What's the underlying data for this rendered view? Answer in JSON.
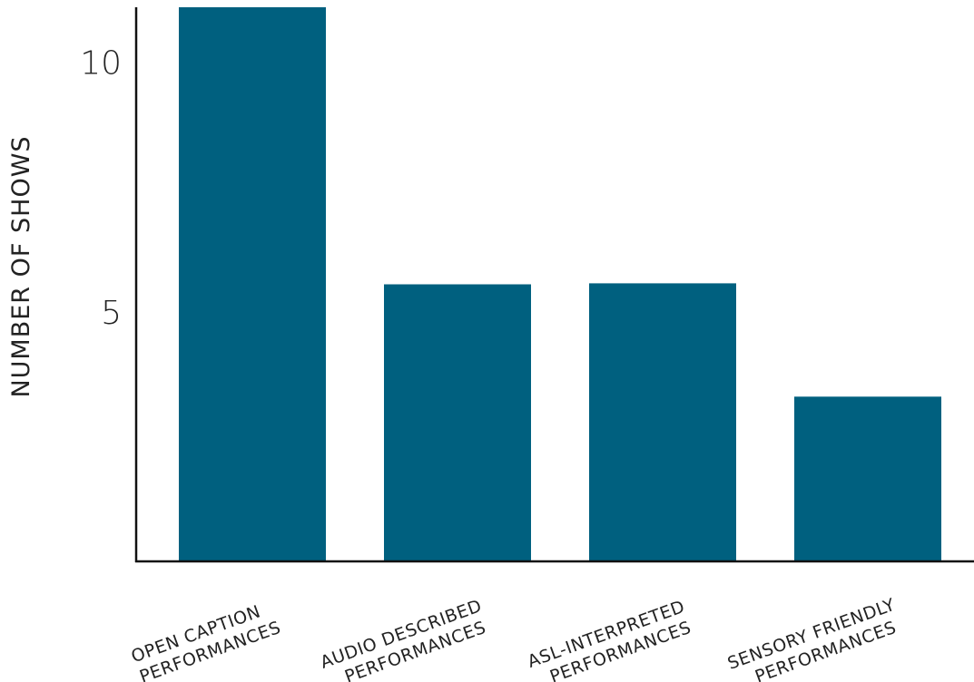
{
  "chart_data": {
    "type": "bar",
    "title": "",
    "xlabel": "",
    "ylabel": "NUMBER OF SHOWS",
    "ylim": [
      0,
      11.1
    ],
    "yticks": [
      5,
      10
    ],
    "grid": false,
    "bar_color": "#00607F",
    "categories": [
      [
        "OPEN CAPTION",
        "PERFORMANCES"
      ],
      [
        "AUDIO DESCRIBED",
        "PERFORMANCES"
      ],
      [
        "ASL-INTERPRETED",
        "PERFORMANCES"
      ],
      [
        "SENSORY FRIENDLY",
        "PERFORMANCES"
      ]
    ],
    "values": [
      11.1,
      5.55,
      5.57,
      3.3
    ]
  }
}
